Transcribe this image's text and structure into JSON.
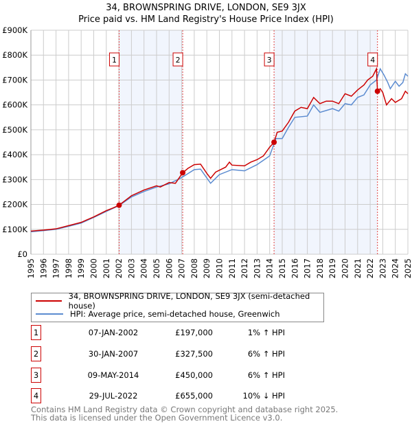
{
  "chart_data": {
    "type": "line",
    "title": "34, BROWNSPRING DRIVE, LONDON, SE9 3JX",
    "subtitle": "Price paid vs. HM Land Registry's House Price Index (HPI)",
    "xlim": [
      1995,
      2025
    ],
    "ylim": [
      0,
      900000
    ],
    "yticks": [
      0,
      100000,
      200000,
      300000,
      400000,
      500000,
      600000,
      700000,
      800000,
      900000
    ],
    "ytick_labels": [
      "£0",
      "£100K",
      "£200K",
      "£300K",
      "£400K",
      "£500K",
      "£600K",
      "£700K",
      "£800K",
      "£900K"
    ],
    "xticks": [
      "1995",
      "1996",
      "1997",
      "1998",
      "1999",
      "2000",
      "2001",
      "2002",
      "2003",
      "2004",
      "2005",
      "2006",
      "2007",
      "2008",
      "2009",
      "2010",
      "2011",
      "2012",
      "2013",
      "2014",
      "2015",
      "2016",
      "2017",
      "2018",
      "2019",
      "2020",
      "2021",
      "2022",
      "2023",
      "2024",
      "2025"
    ],
    "grid": true,
    "series": [
      {
        "name": "34, BROWNSPRING DRIVE, LONDON, SE9 3JX (semi-detached house)",
        "color": "#cc0000",
        "x": [
          1995,
          1996,
          1997,
          1998,
          1999,
          2000,
          2001,
          2001.5,
          2002.02,
          2003,
          2004,
          2005,
          2005.3,
          2006,
          2006.5,
          2007.08,
          2007.5,
          2008,
          2008.5,
          2009,
          2009.3,
          2009.7,
          2010.5,
          2010.8,
          2011,
          2012,
          2012.5,
          2013,
          2013.5,
          2014,
          2014.35,
          2014.6,
          2015,
          2015.5,
          2016,
          2016.5,
          2017,
          2017.5,
          2018,
          2018.5,
          2019,
          2019.5,
          2020,
          2020.5,
          2021,
          2021.5,
          2021.8,
          2022.2,
          2022.5,
          2022.58,
          2022.8,
          2023,
          2023.3,
          2023.7,
          2024,
          2024.5,
          2024.8,
          2025
        ],
        "y": [
          93000,
          97000,
          102000,
          115000,
          128000,
          150000,
          175000,
          185000,
          197000,
          235000,
          258000,
          275000,
          270000,
          288000,
          285000,
          327500,
          345000,
          360000,
          362000,
          325000,
          305000,
          330000,
          350000,
          370000,
          358000,
          355000,
          370000,
          380000,
          395000,
          430000,
          450000,
          490000,
          495000,
          530000,
          575000,
          590000,
          585000,
          630000,
          605000,
          615000,
          615000,
          605000,
          645000,
          635000,
          660000,
          680000,
          700000,
          715000,
          745000,
          655000,
          665000,
          650000,
          600000,
          625000,
          610000,
          625000,
          655000,
          645000
        ]
      },
      {
        "name": "HPI: Average price, semi-detached house, Greenwich",
        "color": "#5b8bd0",
        "x": [
          1995,
          1996,
          1997,
          1998,
          1999,
          2000,
          2001,
          2002,
          2003,
          2004,
          2005,
          2006,
          2007,
          2008,
          2008.5,
          2009.3,
          2010,
          2011,
          2012,
          2013,
          2014,
          2014.5,
          2015,
          2015.5,
          2016,
          2017,
          2017.5,
          2018,
          2019,
          2019.5,
          2020,
          2020.5,
          2021,
          2021.5,
          2022,
          2022.5,
          2022.8,
          2023.1,
          2023.4,
          2023.6,
          2024,
          2024.3,
          2024.6,
          2024.8,
          2025
        ],
        "y": [
          90000,
          95000,
          100000,
          112000,
          125000,
          148000,
          172000,
          195000,
          230000,
          252000,
          270000,
          283000,
          308000,
          340000,
          342000,
          285000,
          320000,
          340000,
          335000,
          360000,
          395000,
          465000,
          465000,
          510000,
          550000,
          555000,
          600000,
          570000,
          585000,
          575000,
          605000,
          600000,
          630000,
          640000,
          680000,
          700000,
          745000,
          720000,
          690000,
          665000,
          695000,
          675000,
          690000,
          725000,
          715000
        ]
      }
    ],
    "sales": [
      {
        "n": "1",
        "x": 2002.02,
        "date": "07-JAN-2002",
        "price": "£197,000",
        "value": 197000,
        "hpi": "1% ↑ HPI"
      },
      {
        "n": "2",
        "x": 2007.08,
        "date": "30-JAN-2007",
        "price": "£327,500",
        "value": 327500,
        "hpi": "6% ↑ HPI"
      },
      {
        "n": "3",
        "x": 2014.35,
        "date": "09-MAY-2014",
        "price": "£450,000",
        "value": 450000,
        "hpi": "6% ↑ HPI"
      },
      {
        "n": "4",
        "x": 2022.58,
        "date": "29-JUL-2022",
        "price": "£655,000",
        "value": 655000,
        "hpi": "10% ↓ HPI"
      }
    ],
    "shaded_ranges": [
      [
        2002.02,
        2007.08
      ],
      [
        2014.35,
        2022.58
      ]
    ]
  },
  "footer": {
    "line1": "Contains HM Land Registry data © Crown copyright and database right 2025.",
    "line2": "This data is licensed under the Open Government Licence v3.0."
  }
}
